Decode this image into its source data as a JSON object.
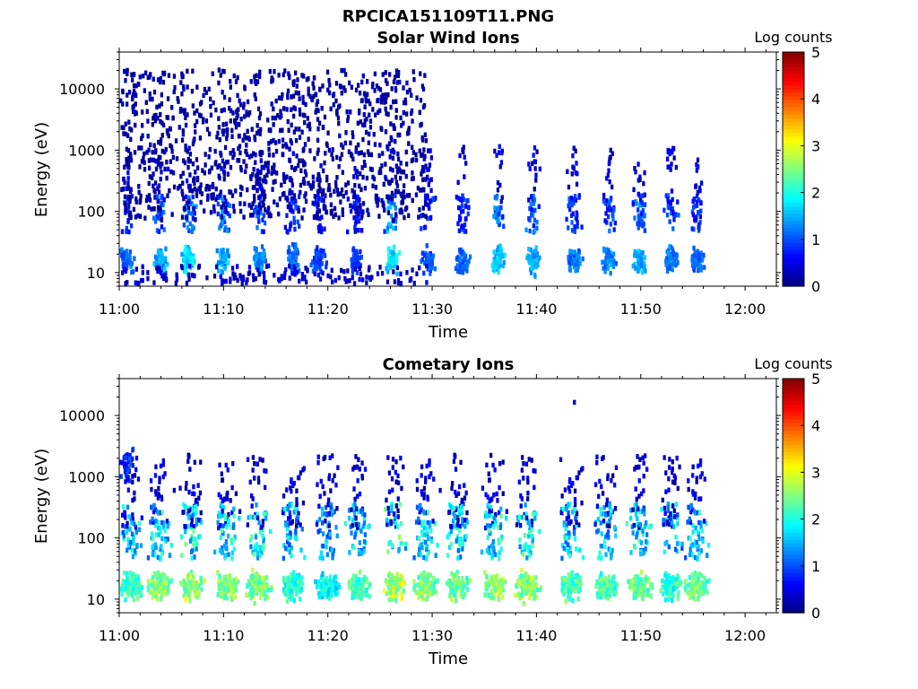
{
  "figure_title": "RPCICA151109T11.PNG",
  "colors": {
    "colormap": "jet",
    "background": "#ffffff",
    "axes": "#000000"
  },
  "chart_data": [
    {
      "type": "heatmap",
      "title": "Solar Wind Ions",
      "xlabel": "Time",
      "ylabel": "Energy (eV)",
      "y_scale": "log",
      "x_ticks": [
        "11:00",
        "11:10",
        "11:20",
        "11:30",
        "11:40",
        "11:50",
        "12:00"
      ],
      "x_range": [
        "11:00",
        "12:03"
      ],
      "y_ticks": [
        "10",
        "100",
        "1000",
        "10000"
      ],
      "y_range_ev": [
        6,
        40000
      ],
      "colorbar": {
        "label": "Log counts",
        "ticks": [
          "0",
          "1",
          "2",
          "3",
          "4",
          "5"
        ],
        "range": [
          0,
          5
        ]
      },
      "bursts": [
        {
          "t": 0.5,
          "logc": 1.2
        },
        {
          "t": 3.8,
          "logc": 1.5
        },
        {
          "t": 6.5,
          "logc": 1.8
        },
        {
          "t": 9.8,
          "logc": 1.6
        },
        {
          "t": 13.3,
          "logc": 1.4
        },
        {
          "t": 16.5,
          "logc": 1.2
        },
        {
          "t": 19.0,
          "logc": 1.0
        },
        {
          "t": 22.5,
          "logc": 1.0
        },
        {
          "t": 26.0,
          "logc": 1.9
        },
        {
          "t": 29.5,
          "logc": 1.1
        },
        {
          "t": 32.8,
          "logc": 1.2
        },
        {
          "t": 36.2,
          "logc": 1.7
        },
        {
          "t": 39.5,
          "logc": 1.6
        },
        {
          "t": 43.5,
          "logc": 1.3
        },
        {
          "t": 46.8,
          "logc": 1.4
        },
        {
          "t": 49.8,
          "logc": 1.6
        },
        {
          "t": 52.8,
          "logc": 1.3
        },
        {
          "t": 55.3,
          "logc": 1.2
        }
      ]
    },
    {
      "type": "heatmap",
      "title": "Cometary Ions",
      "xlabel": "Time",
      "ylabel": "Energy (eV)",
      "y_scale": "log",
      "x_ticks": [
        "11:00",
        "11:10",
        "11:20",
        "11:30",
        "11:40",
        "11:50",
        "12:00"
      ],
      "x_range": [
        "11:00",
        "12:03"
      ],
      "y_ticks": [
        "10",
        "100",
        "1000",
        "10000"
      ],
      "y_range_ev": [
        6,
        40000
      ],
      "colorbar": {
        "label": "Log counts",
        "ticks": [
          "0",
          "1",
          "2",
          "3",
          "4",
          "5"
        ],
        "range": [
          0,
          5
        ]
      },
      "bursts": [
        {
          "t": 1.0,
          "logc": 2.4
        },
        {
          "t": 3.8,
          "logc": 2.6
        },
        {
          "t": 6.8,
          "logc": 2.8
        },
        {
          "t": 10.2,
          "logc": 2.7
        },
        {
          "t": 13.2,
          "logc": 2.7
        },
        {
          "t": 16.5,
          "logc": 2.2
        },
        {
          "t": 19.8,
          "logc": 2.0
        },
        {
          "t": 22.8,
          "logc": 2.4
        },
        {
          "t": 26.3,
          "logc": 3.0
        },
        {
          "t": 29.3,
          "logc": 2.6
        },
        {
          "t": 32.3,
          "logc": 2.6
        },
        {
          "t": 35.8,
          "logc": 2.8
        },
        {
          "t": 39.0,
          "logc": 2.8
        },
        {
          "t": 43.2,
          "logc": 2.4
        },
        {
          "t": 46.5,
          "logc": 2.4
        },
        {
          "t": 49.8,
          "logc": 2.6
        },
        {
          "t": 52.8,
          "logc": 2.3
        },
        {
          "t": 55.3,
          "logc": 2.5
        }
      ]
    }
  ]
}
